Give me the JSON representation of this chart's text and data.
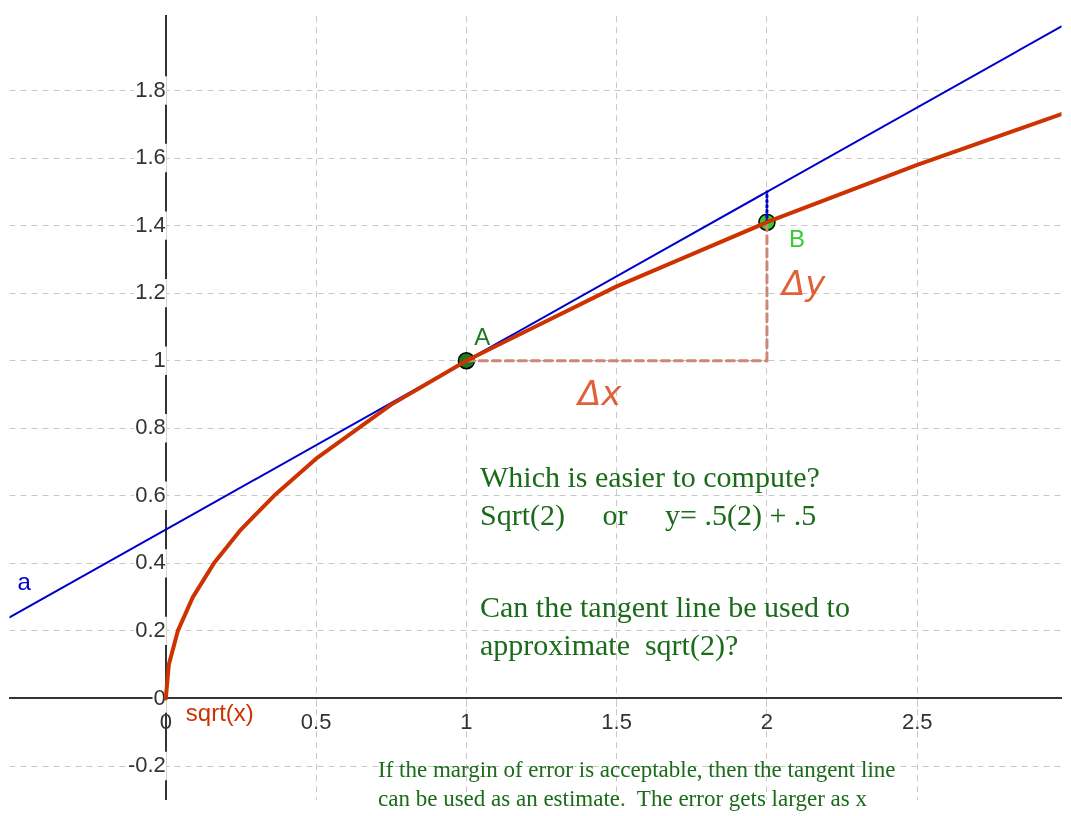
{
  "chart_data": {
    "type": "line",
    "xlim": [
      -0.52,
      2.98
    ],
    "ylim": [
      -0.3,
      2.02
    ],
    "xticks": [
      0,
      0.5,
      1,
      1.5,
      2,
      2.5
    ],
    "yticks": [
      -0.2,
      0,
      0.2,
      0.4,
      0.6,
      0.8,
      1,
      1.2,
      1.4,
      1.6,
      1.8
    ],
    "grid": true,
    "legend": false,
    "series": [
      {
        "name": "sqrt(x)",
        "color": "#cc3300",
        "x": [
          0,
          0.01,
          0.04,
          0.09,
          0.16,
          0.25,
          0.36,
          0.5,
          0.75,
          1,
          1.5,
          2,
          2.5,
          2.98
        ],
        "values": [
          0,
          0.1,
          0.2,
          0.3,
          0.4,
          0.5,
          0.6,
          0.71,
          0.87,
          1,
          1.22,
          1.41,
          1.58,
          1.73
        ]
      },
      {
        "name": "a",
        "color": "#0000cc",
        "x": [
          -0.52,
          2.98
        ],
        "values": [
          0.24,
          1.99
        ]
      },
      {
        "color": "#cc8877",
        "line_style": "dashed",
        "x": [
          1,
          2
        ],
        "values": [
          1,
          1
        ]
      },
      {
        "color": "#cc8877",
        "line_style": "dashed",
        "x": [
          2,
          2
        ],
        "values": [
          1,
          1.41
        ]
      },
      {
        "color": "#0000cc",
        "line_style": "dotted",
        "x": [
          2,
          2
        ],
        "values": [
          1.41,
          1.5
        ]
      },
      {
        "name": "A",
        "type": "scatter",
        "marker": "circle",
        "color": "#1f7a1f",
        "x": [
          1
        ],
        "values": [
          1
        ]
      },
      {
        "name": "B",
        "type": "scatter",
        "marker": "circle",
        "color": "#33cc33",
        "x": [
          2
        ],
        "values": [
          1.41
        ]
      }
    ],
    "annotations": [
      "Δx",
      "Δy",
      "Which is easier to compute?\nSqrt(2)     or     y= .5(2) + .5",
      "Can the tangent line be used to\napproximate  sqrt(2)?",
      "If the margin of error is acceptable, then the tangent line\ncan be used as an estimate.  The error gets larger as x"
    ]
  }
}
